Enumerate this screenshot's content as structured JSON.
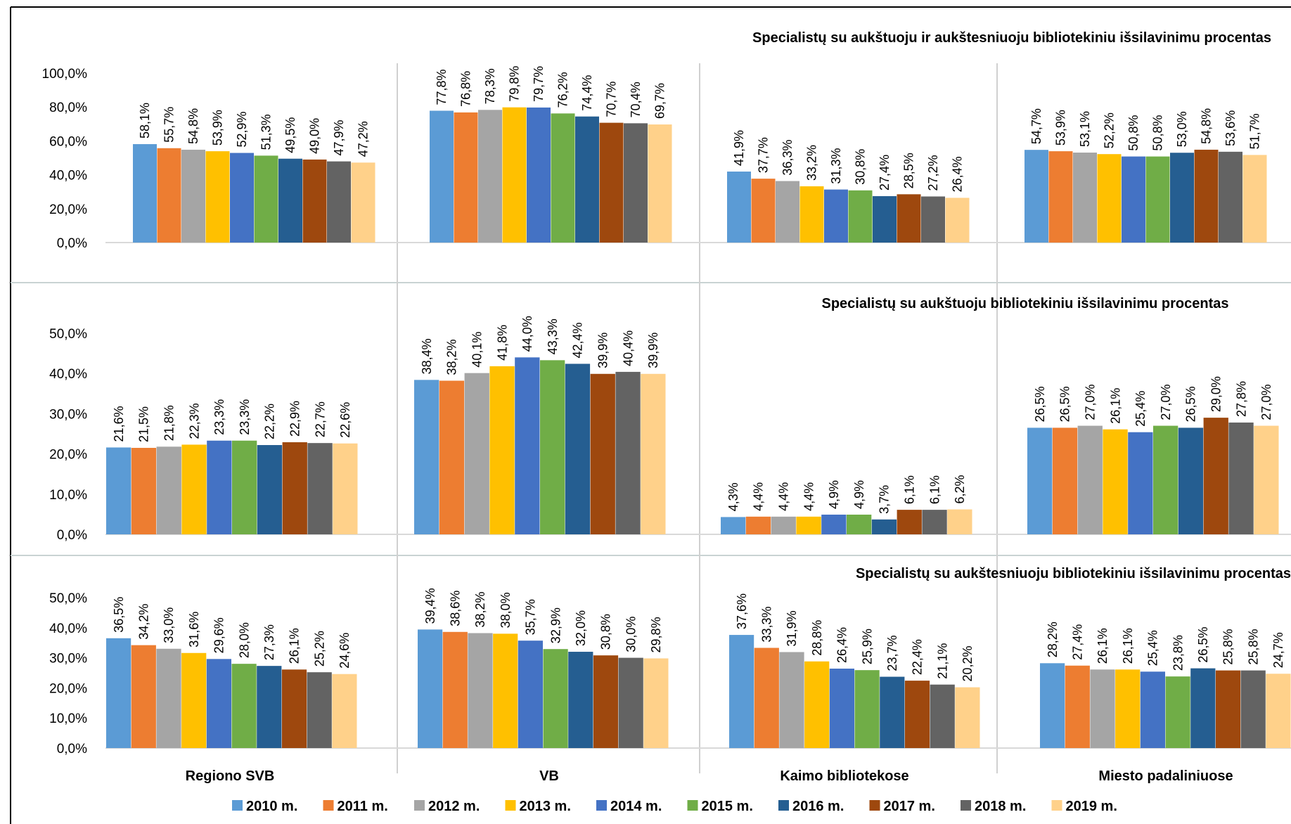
{
  "chart_data": [
    {
      "type": "bar",
      "title": "Specialistų su aukštuoju ir aukštesniuoju bibliotekiniu išsilavinimu procentas",
      "categories": [
        "Regiono SVB",
        "VB",
        "Kaimo bibliotekose",
        "Miesto padaliniuose"
      ],
      "ylim": [
        0,
        100
      ],
      "yticks": [
        "0,0%",
        "20,0%",
        "40,0%",
        "60,0%",
        "80,0%",
        "100,0%"
      ],
      "series": [
        {
          "name": "2010 m.",
          "values": [
            58.1,
            77.8,
            41.9,
            54.7
          ]
        },
        {
          "name": "2011 m.",
          "values": [
            55.7,
            76.8,
            37.7,
            53.9
          ]
        },
        {
          "name": "2012 m.",
          "values": [
            54.8,
            78.3,
            36.3,
            53.1
          ]
        },
        {
          "name": "2013 m.",
          "values": [
            53.9,
            79.8,
            33.2,
            52.2
          ]
        },
        {
          "name": "2014 m.",
          "values": [
            52.9,
            79.7,
            31.3,
            50.8
          ]
        },
        {
          "name": "2015 m.",
          "values": [
            51.3,
            76.2,
            30.8,
            50.8
          ]
        },
        {
          "name": "2016 m.",
          "values": [
            49.5,
            74.4,
            27.4,
            53.0
          ]
        },
        {
          "name": "2017 m.",
          "values": [
            49.0,
            70.7,
            28.5,
            54.8
          ]
        },
        {
          "name": "2018 m.",
          "values": [
            47.9,
            70.4,
            27.2,
            53.6
          ]
        },
        {
          "name": "2019 m.",
          "values": [
            47.2,
            69.7,
            26.4,
            51.7
          ]
        }
      ],
      "data_labels": [
        [
          "58,1%",
          "77,8%",
          "41,9%",
          "54,7%"
        ],
        [
          "55,7%",
          "76,8%",
          "37,7%",
          "53,9%"
        ],
        [
          "54,8%",
          "78,3%",
          "36,3%",
          "53,1%"
        ],
        [
          "53,9%",
          "79,8%",
          "33,2%",
          "52,2%"
        ],
        [
          "52,9%",
          "79,7%",
          "31,3%",
          "50,8%"
        ],
        [
          "51,3%",
          "76,2%",
          "30,8%",
          "50,8%"
        ],
        [
          "49,5%",
          "74,4%",
          "27,4%",
          "53,0%"
        ],
        [
          "49,0%",
          "70,7%",
          "28,5%",
          "54,8%"
        ],
        [
          "47,9%",
          "70,4%",
          "27,2%",
          "53,6%"
        ],
        [
          "47,2%",
          "69,7%",
          "26,4%",
          "51,7%"
        ]
      ]
    },
    {
      "type": "bar",
      "title": "Specialistų su aukštuoju bibliotekiniu išsilavinimu procentas",
      "categories": [
        "Regiono SVB",
        "VB",
        "Kaimo bibliotekose",
        "Miesto padaliniuose"
      ],
      "ylim": [
        0,
        50
      ],
      "yticks": [
        "0,0%",
        "10,0%",
        "20,0%",
        "30,0%",
        "40,0%",
        "50,0%"
      ],
      "series": [
        {
          "name": "2010 m.",
          "values": [
            21.6,
            38.4,
            4.3,
            26.5
          ]
        },
        {
          "name": "2011 m.",
          "values": [
            21.5,
            38.2,
            4.4,
            26.5
          ]
        },
        {
          "name": "2012 m.",
          "values": [
            21.8,
            40.1,
            4.4,
            27.0
          ]
        },
        {
          "name": "2013 m.",
          "values": [
            22.3,
            41.8,
            4.4,
            26.1
          ]
        },
        {
          "name": "2014 m.",
          "values": [
            23.3,
            44.0,
            4.9,
            25.4
          ]
        },
        {
          "name": "2015 m.",
          "values": [
            23.3,
            43.3,
            4.9,
            27.0
          ]
        },
        {
          "name": "2016 m.",
          "values": [
            22.2,
            42.4,
            3.7,
            26.5
          ]
        },
        {
          "name": "2017 m.",
          "values": [
            22.9,
            39.9,
            6.1,
            29.0
          ]
        },
        {
          "name": "2018 m.",
          "values": [
            22.7,
            40.4,
            6.1,
            27.8
          ]
        },
        {
          "name": "2019 m.",
          "values": [
            22.6,
            39.9,
            6.2,
            27.0
          ]
        }
      ],
      "data_labels": [
        [
          "21,6%",
          "38,4%",
          "4,3%",
          "26,5%"
        ],
        [
          "21,5%",
          "38,2%",
          "4,4%",
          "26,5%"
        ],
        [
          "21,8%",
          "40,1%",
          "4,4%",
          "27,0%"
        ],
        [
          "22,3%",
          "41,8%",
          "4,4%",
          "26,1%"
        ],
        [
          "23,3%",
          "44,0%",
          "4,9%",
          "25,4%"
        ],
        [
          "23,3%",
          "43,3%",
          "4,9%",
          "27,0%"
        ],
        [
          "22,2%",
          "42,4%",
          "3,7%",
          "26,5%"
        ],
        [
          "22,9%",
          "39,9%",
          "6,1%",
          "29,0%"
        ],
        [
          "22,7%",
          "40,4%",
          "6,1%",
          "27,8%"
        ],
        [
          "22,6%",
          "39,9%",
          "6,2%",
          "27,0%"
        ]
      ]
    },
    {
      "type": "bar",
      "title": "Specialistų su aukštesniuoju bibliotekiniu išsilavinimu procentas",
      "categories": [
        "Regiono SVB",
        "VB",
        "Kaimo bibliotekose",
        "Miesto padaliniuose"
      ],
      "ylim": [
        0,
        50
      ],
      "yticks": [
        "0,0%",
        "10,0%",
        "20,0%",
        "30,0%",
        "40,0%",
        "50,0%"
      ],
      "series": [
        {
          "name": "2010 m.",
          "values": [
            36.5,
            39.4,
            37.6,
            28.2
          ]
        },
        {
          "name": "2011 m.",
          "values": [
            34.2,
            38.6,
            33.3,
            27.4
          ]
        },
        {
          "name": "2012 m.",
          "values": [
            33.0,
            38.2,
            31.9,
            26.1
          ]
        },
        {
          "name": "2013 m.",
          "values": [
            31.6,
            38.0,
            28.8,
            26.1
          ]
        },
        {
          "name": "2014 m.",
          "values": [
            29.6,
            35.7,
            26.4,
            25.4
          ]
        },
        {
          "name": "2015 m.",
          "values": [
            28.0,
            32.9,
            25.9,
            23.8
          ]
        },
        {
          "name": "2016 m.",
          "values": [
            27.3,
            32.0,
            23.7,
            26.5
          ]
        },
        {
          "name": "2017 m.",
          "values": [
            26.1,
            30.8,
            22.4,
            25.8
          ]
        },
        {
          "name": "2018 m.",
          "values": [
            25.2,
            30.0,
            21.1,
            25.8
          ]
        },
        {
          "name": "2019 m.",
          "values": [
            24.6,
            29.8,
            20.2,
            24.7
          ]
        }
      ],
      "data_labels": [
        [
          "36,5%",
          "39,4%",
          "37,6%",
          "28,2%"
        ],
        [
          "34,2%",
          "38,6%",
          "33,3%",
          "27,4%"
        ],
        [
          "33,0%",
          "38,2%",
          "31,9%",
          "26,1%"
        ],
        [
          "31,6%",
          "38,0%",
          "28,8%",
          "26,1%"
        ],
        [
          "29,6%",
          "35,7%",
          "26,4%",
          "25,4%"
        ],
        [
          "28,0%",
          "32,9%",
          "25,9%",
          "23,8%"
        ],
        [
          "27,3%",
          "32,0%",
          "23,7%",
          "26,5%"
        ],
        [
          "26,1%",
          "30,8%",
          "22,4%",
          "25,8%"
        ],
        [
          "25,2%",
          "30,0%",
          "21,1%",
          "25,8%"
        ],
        [
          "24,6%",
          "29,8%",
          "20,2%",
          "24,7%"
        ]
      ]
    }
  ],
  "legend": {
    "items": [
      "2010 m.",
      "2011 m.",
      "2012 m.",
      "2013 m.",
      "2014 m.",
      "2015 m.",
      "2016 m.",
      "2017 m.",
      "2018 m.",
      "2019 m."
    ],
    "placement": "bottom"
  },
  "colors": [
    "#5B9BD5",
    "#ED7D31",
    "#A5A5A5",
    "#FFC000",
    "#4472C4",
    "#70AD47",
    "#255E91",
    "#9E480E",
    "#636363",
    "#FFD18A"
  ]
}
